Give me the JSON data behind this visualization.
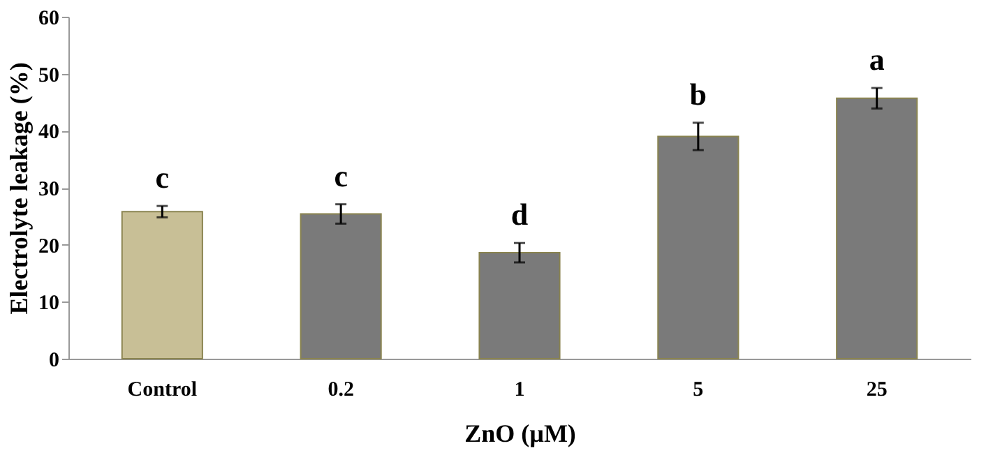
{
  "chart_data": {
    "type": "bar",
    "xlabel": "ZnO (µM)",
    "ylabel": "Electrolyte leakage (%)",
    "categories": [
      "Control",
      "0.2",
      "1",
      "5",
      "25"
    ],
    "values": [
      25.8,
      25.4,
      18.6,
      39.0,
      45.7
    ],
    "errors": [
      1.0,
      1.7,
      1.7,
      2.4,
      1.8
    ],
    "colors": [
      "#c8bf96",
      "#7a7a7a",
      "#7a7a7a",
      "#7a7a7a",
      "#7a7a7a"
    ],
    "ylim": [
      0,
      60
    ],
    "yticks": [
      0,
      10,
      20,
      30,
      40,
      50,
      60
    ],
    "grid": false,
    "annotations": [
      {
        "text": "c",
        "x": "Control",
        "y": 25.8
      },
      {
        "text": "c",
        "x": "0.2",
        "y": 25.4
      },
      {
        "text": "d",
        "x": "1",
        "y": 18.6
      },
      {
        "text": "b",
        "x": "5",
        "y": 39.0
      },
      {
        "text": "a",
        "x": "25",
        "y": 45.7
      }
    ]
  }
}
